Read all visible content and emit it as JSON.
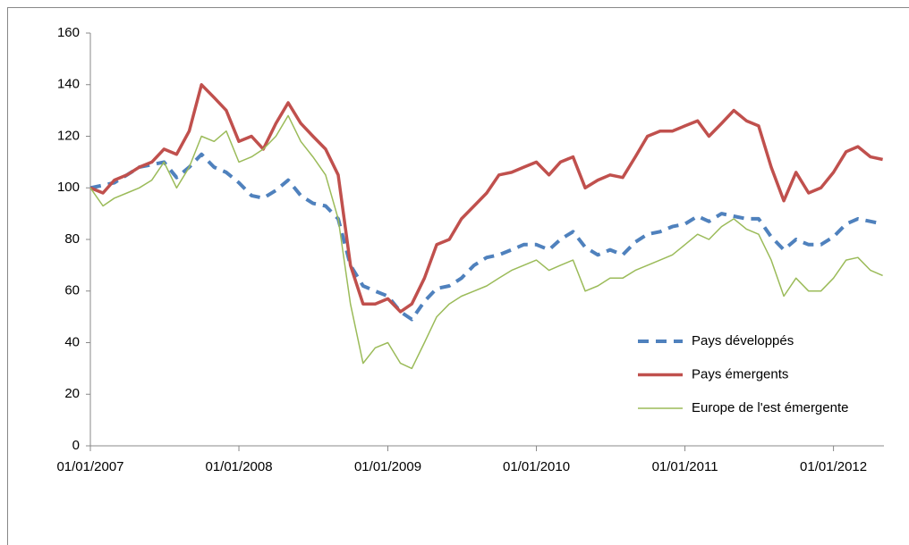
{
  "chart_data": {
    "type": "line",
    "x": [
      "2007-01-01",
      "2007-02-01",
      "2007-03-01",
      "2007-04-01",
      "2007-05-01",
      "2007-06-01",
      "2007-07-01",
      "2007-08-01",
      "2007-09-01",
      "2007-10-01",
      "2007-11-01",
      "2007-12-01",
      "2008-01-01",
      "2008-02-01",
      "2008-03-01",
      "2008-04-01",
      "2008-05-01",
      "2008-06-01",
      "2008-07-01",
      "2008-08-01",
      "2008-09-01",
      "2008-10-01",
      "2008-11-01",
      "2008-12-01",
      "2009-01-01",
      "2009-02-01",
      "2009-03-01",
      "2009-04-01",
      "2009-05-01",
      "2009-06-01",
      "2009-07-01",
      "2009-08-01",
      "2009-09-01",
      "2009-10-01",
      "2009-11-01",
      "2009-12-01",
      "2010-01-01",
      "2010-02-01",
      "2010-03-01",
      "2010-04-01",
      "2010-05-01",
      "2010-06-01",
      "2010-07-01",
      "2010-08-01",
      "2010-09-01",
      "2010-10-01",
      "2010-11-01",
      "2010-12-01",
      "2011-01-01",
      "2011-02-01",
      "2011-03-01",
      "2011-04-01",
      "2011-05-01",
      "2011-06-01",
      "2011-07-01",
      "2011-08-01",
      "2011-09-01",
      "2011-10-01",
      "2011-11-01",
      "2011-12-01",
      "2012-01-01",
      "2012-02-01",
      "2012-03-01",
      "2012-04-01",
      "2012-05-01"
    ],
    "series": [
      {
        "name": "Pays développés",
        "color": "#4f81bd",
        "style": "dashed",
        "values": [
          100,
          101,
          102,
          105,
          108,
          109,
          110,
          104,
          108,
          113,
          108,
          106,
          102,
          97,
          96,
          99,
          103,
          97,
          94,
          93,
          88,
          70,
          62,
          60,
          58,
          52,
          49,
          56,
          61,
          62,
          65,
          70,
          73,
          74,
          76,
          78,
          78,
          76,
          80,
          83,
          77,
          74,
          76,
          74,
          79,
          82,
          83,
          85,
          86,
          89,
          87,
          90,
          89,
          88,
          88,
          81,
          76,
          80,
          78,
          78,
          81,
          86,
          88,
          87,
          86
        ]
      },
      {
        "name": "Pays émergents",
        "color": "#c0504d",
        "style": "thick",
        "values": [
          100,
          98,
          103,
          105,
          108,
          110,
          115,
          113,
          122,
          140,
          135,
          130,
          118,
          120,
          115,
          125,
          133,
          125,
          120,
          115,
          105,
          70,
          55,
          55,
          57,
          52,
          55,
          65,
          78,
          80,
          88,
          93,
          98,
          105,
          106,
          108,
          110,
          105,
          110,
          112,
          100,
          103,
          105,
          104,
          112,
          120,
          122,
          122,
          124,
          126,
          120,
          125,
          130,
          126,
          124,
          108,
          95,
          106,
          98,
          100,
          106,
          114,
          116,
          112,
          111
        ]
      },
      {
        "name": "Europe de l'est émergente",
        "color": "#9bbb59",
        "style": "thin",
        "values": [
          100,
          93,
          96,
          98,
          100,
          103,
          110,
          100,
          108,
          120,
          118,
          122,
          110,
          112,
          115,
          120,
          128,
          118,
          112,
          105,
          88,
          55,
          32,
          38,
          40,
          32,
          30,
          40,
          50,
          55,
          58,
          60,
          62,
          65,
          68,
          70,
          72,
          68,
          70,
          72,
          60,
          62,
          65,
          65,
          68,
          70,
          72,
          74,
          78,
          82,
          80,
          85,
          88,
          84,
          82,
          72,
          58,
          65,
          60,
          60,
          65,
          72,
          73,
          68,
          66
        ]
      }
    ],
    "xlim": [
      "2007-01-01",
      "2012-05-04"
    ],
    "xticks": [
      {
        "value": "2007-01-01",
        "label": "01/01/2007"
      },
      {
        "value": "2008-01-01",
        "label": "01/01/2008"
      },
      {
        "value": "2009-01-01",
        "label": "01/01/2009"
      },
      {
        "value": "2010-01-01",
        "label": "01/01/2010"
      },
      {
        "value": "2011-01-01",
        "label": "01/01/2011"
      },
      {
        "value": "2012-01-01",
        "label": "01/01/2012"
      }
    ],
    "ylim": [
      0,
      160
    ],
    "yticks": [
      0,
      20,
      40,
      60,
      80,
      100,
      120,
      140,
      160
    ],
    "grid": false,
    "legend": "center-right"
  }
}
